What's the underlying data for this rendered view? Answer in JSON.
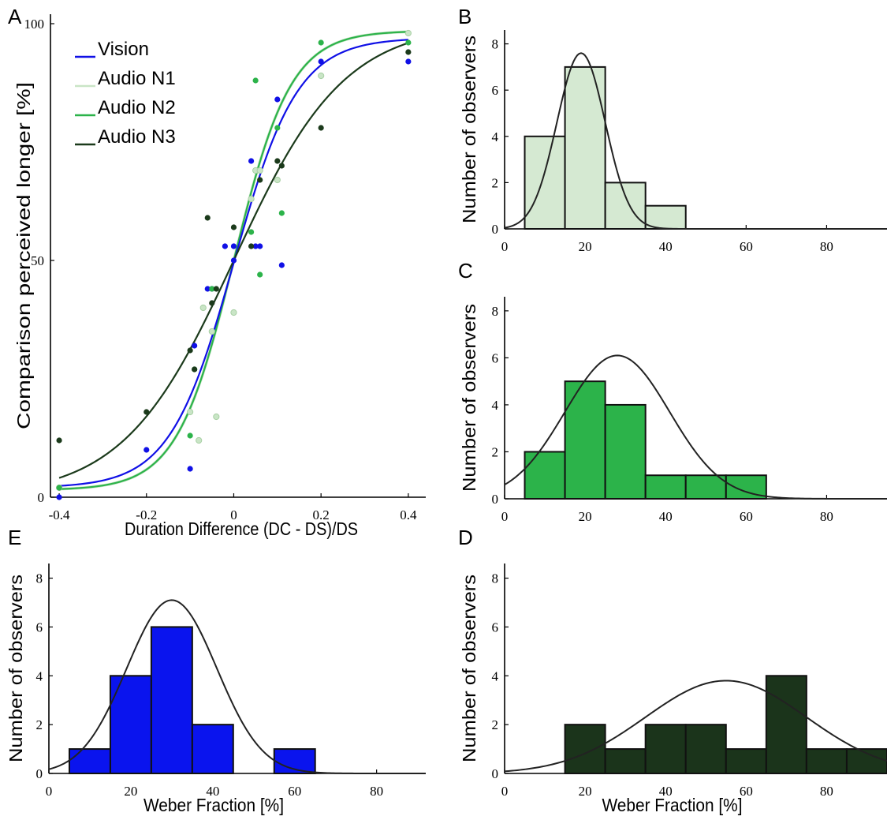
{
  "chart_data": [
    {
      "panel": "A",
      "type": "scatter",
      "xlabel": "Duration Difference (DC - DS)/DS",
      "ylabel": "Comparison perceived longer [%]",
      "xlim": [
        -0.42,
        0.44
      ],
      "ylim": [
        0,
        102
      ],
      "xticks": [
        -0.4,
        -0.2,
        0,
        0.2,
        0.4
      ],
      "xtick_labels": [
        "-0.4",
        "-0.2",
        "0",
        "0.2",
        "0.4"
      ],
      "yticks": [
        0,
        50,
        100
      ],
      "ytick_labels": [
        "0",
        "50",
        "100"
      ],
      "legend_position": "top-left",
      "grid": false,
      "series": [
        {
          "name": "Vision",
          "color": "#1010e6",
          "fit": {
            "mu": 0,
            "slope": 13.7,
            "lower": 0.02,
            "upper": 0.97
          },
          "points": [
            [
              -0.4,
              0
            ],
            [
              -0.2,
              10
            ],
            [
              -0.1,
              6
            ],
            [
              -0.09,
              32
            ],
            [
              -0.06,
              44
            ],
            [
              -0.05,
              44
            ],
            [
              -0.02,
              53
            ],
            [
              0.0,
              53
            ],
            [
              0.0,
              50
            ],
            [
              0.04,
              71
            ],
            [
              0.05,
              53
            ],
            [
              0.06,
              53
            ],
            [
              0.1,
              84
            ],
            [
              0.11,
              49
            ],
            [
              0.2,
              92
            ],
            [
              0.4,
              92
            ]
          ]
        },
        {
          "name": "Audio N1",
          "color": "#c9e5c6",
          "fit": {
            "mu": 0,
            "slope": 15.3,
            "lower": 0.015,
            "upper": 0.985
          },
          "points": [
            [
              -0.4,
              2
            ],
            [
              -0.1,
              18
            ],
            [
              -0.08,
              12
            ],
            [
              -0.07,
              40
            ],
            [
              -0.05,
              35
            ],
            [
              -0.04,
              17
            ],
            [
              0.0,
              39
            ],
            [
              0.04,
              63
            ],
            [
              0.05,
              69
            ],
            [
              0.06,
              69
            ],
            [
              0.1,
              67
            ],
            [
              0.2,
              89
            ],
            [
              0.4,
              98
            ]
          ]
        },
        {
          "name": "Audio N2",
          "color": "#2cb34a",
          "fit": {
            "mu": 0,
            "slope": 15.3,
            "lower": 0.015,
            "upper": 0.985
          },
          "points": [
            [
              -0.4,
              2
            ],
            [
              -0.1,
              13
            ],
            [
              -0.09,
              27
            ],
            [
              -0.05,
              44
            ],
            [
              0.04,
              56
            ],
            [
              0.05,
              88
            ],
            [
              0.06,
              47
            ],
            [
              0.1,
              78
            ],
            [
              0.11,
              60
            ],
            [
              0.2,
              96
            ],
            [
              0.4,
              96
            ]
          ]
        },
        {
          "name": "Audio N3",
          "color": "#1b3a1b",
          "fit": {
            "mu": 0,
            "slope": 7.9,
            "lower": 0,
            "upper": 1
          },
          "points": [
            [
              -0.4,
              12
            ],
            [
              -0.2,
              18
            ],
            [
              -0.1,
              31
            ],
            [
              -0.09,
              27
            ],
            [
              -0.06,
              59
            ],
            [
              -0.05,
              41
            ],
            [
              -0.04,
              44
            ],
            [
              0.0,
              57
            ],
            [
              0.04,
              53
            ],
            [
              0.06,
              67
            ],
            [
              0.1,
              71
            ],
            [
              0.11,
              70
            ],
            [
              0.2,
              78
            ],
            [
              0.4,
              94
            ]
          ]
        }
      ]
    },
    {
      "panel": "B",
      "type": "bar",
      "color": "#d5e9d2",
      "xlabel": "",
      "ylabel": "Number of observers",
      "xlim": [
        0,
        95
      ],
      "ylim": [
        0,
        8.6
      ],
      "xticks": [
        0,
        20,
        40,
        60,
        80
      ],
      "xtick_labels": [
        "0",
        "20",
        "40",
        "60",
        "80"
      ],
      "yticks": [
        0,
        2,
        4,
        6,
        8
      ],
      "ytick_labels": [
        "0",
        "2",
        "4",
        "6",
        "8"
      ],
      "bins": [
        [
          5,
          15,
          4
        ],
        [
          15,
          25,
          7
        ],
        [
          25,
          35,
          2
        ],
        [
          35,
          45,
          1
        ]
      ],
      "normal_fit": {
        "mean": 19,
        "sd": 6,
        "peak": 7.6
      }
    },
    {
      "panel": "C",
      "type": "bar",
      "color": "#2cb34a",
      "xlabel": "",
      "ylabel": "Number of observers",
      "xlim": [
        0,
        95
      ],
      "ylim": [
        0,
        8.6
      ],
      "xticks": [
        0,
        20,
        40,
        60,
        80
      ],
      "xtick_labels": [
        "0",
        "20",
        "40",
        "60",
        "80"
      ],
      "yticks": [
        0,
        2,
        4,
        6,
        8
      ],
      "ytick_labels": [
        "0",
        "2",
        "4",
        "6",
        "8"
      ],
      "bins": [
        [
          5,
          15,
          2
        ],
        [
          15,
          25,
          5
        ],
        [
          25,
          35,
          4
        ],
        [
          35,
          45,
          1
        ],
        [
          45,
          55,
          1
        ],
        [
          55,
          65,
          1
        ]
      ],
      "normal_fit": {
        "mean": 28,
        "sd": 13,
        "peak": 6.1
      }
    },
    {
      "panel": "D",
      "type": "bar",
      "color": "#1b341b",
      "xlabel": "Weber Fraction [%]",
      "ylabel": "Number of observers",
      "xlim": [
        0,
        95
      ],
      "ylim": [
        0,
        8.6
      ],
      "xticks": [
        0,
        20,
        40,
        60,
        80
      ],
      "xtick_labels": [
        "0",
        "20",
        "40",
        "60",
        "80"
      ],
      "yticks": [
        0,
        2,
        4,
        6,
        8
      ],
      "ytick_labels": [
        "0",
        "2",
        "4",
        "6",
        "8"
      ],
      "bins": [
        [
          15,
          25,
          2
        ],
        [
          25,
          35,
          1
        ],
        [
          35,
          45,
          2
        ],
        [
          45,
          55,
          2
        ],
        [
          55,
          65,
          1
        ],
        [
          65,
          75,
          4
        ],
        [
          75,
          85,
          1
        ],
        [
          85,
          95,
          1
        ]
      ],
      "normal_fit": {
        "mean": 55,
        "sd": 20,
        "peak": 3.8
      }
    },
    {
      "panel": "E",
      "type": "bar",
      "color": "#0a14ee",
      "xlabel": "Weber Fraction [%]",
      "ylabel": "Number of observers",
      "xlim": [
        0,
        92
      ],
      "ylim": [
        0,
        8.6
      ],
      "xticks": [
        0,
        20,
        40,
        60,
        80
      ],
      "xtick_labels": [
        "0",
        "20",
        "40",
        "60",
        "80"
      ],
      "yticks": [
        0,
        2,
        4,
        6,
        8
      ],
      "ytick_labels": [
        "0",
        "2",
        "4",
        "6",
        "8"
      ],
      "bins": [
        [
          5,
          15,
          1
        ],
        [
          15,
          25,
          4
        ],
        [
          25,
          35,
          6
        ],
        [
          35,
          45,
          2
        ],
        [
          55,
          65,
          1
        ]
      ],
      "normal_fit": {
        "mean": 30,
        "sd": 11,
        "peak": 7.1
      }
    }
  ]
}
